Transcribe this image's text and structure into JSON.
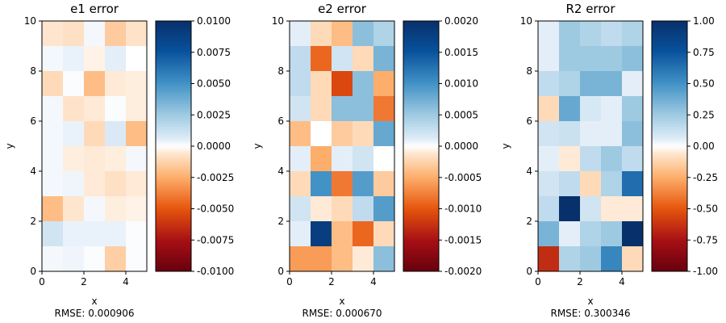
{
  "chart_data": [
    {
      "type": "heatmap",
      "title": "e1 error",
      "xlabel": "x",
      "ylabel": "y",
      "rmse_text": "RMSE: 0.000906",
      "xlim": [
        0,
        5
      ],
      "ylim": [
        0,
        10
      ],
      "xticks": [
        "0",
        "2",
        "4"
      ],
      "yticks": [
        "0",
        "2",
        "4",
        "6",
        "8",
        "10"
      ],
      "colorbar": {
        "min": -0.01,
        "max": 0.01,
        "ticks": [
          "-0.0100",
          "-0.0075",
          "-0.0050",
          "-0.0025",
          "0.0000",
          "0.0025",
          "0.0050",
          "0.0075",
          "0.0100"
        ]
      },
      "values": [
        [
          -0.0006,
          -0.0008,
          0.0002,
          -0.0015,
          -0.0007
        ],
        [
          0.0002,
          0.0004,
          -0.0003,
          0.0005,
          0.0
        ],
        [
          -0.001,
          0.0001,
          -0.002,
          -0.0005,
          -0.0004
        ],
        [
          0.0002,
          -0.0007,
          -0.0005,
          0.0001,
          -0.0004
        ],
        [
          0.0002,
          0.0004,
          -0.001,
          0.0007,
          -0.002
        ],
        [
          0.0002,
          -0.0004,
          -0.0005,
          -0.0004,
          0.0002
        ],
        [
          0.0002,
          0.0003,
          -0.0005,
          -0.0008,
          -0.0005
        ],
        [
          -0.002,
          -0.0006,
          0.0002,
          -0.0004,
          -0.0003
        ],
        [
          0.001,
          0.0004,
          0.0004,
          0.0004,
          0.0001
        ],
        [
          0.0002,
          0.0003,
          0.0001,
          -0.0014,
          0.0001
        ]
      ]
    },
    {
      "type": "heatmap",
      "title": "e2 error",
      "xlabel": "x",
      "ylabel": "y",
      "rmse_text": "RMSE: 0.000670",
      "xlim": [
        0,
        5
      ],
      "ylim": [
        0,
        10
      ],
      "xticks": [
        "0",
        "2",
        "4"
      ],
      "yticks": [
        "0",
        "2",
        "4",
        "6",
        "8",
        "10"
      ],
      "colorbar": {
        "min": -0.002,
        "max": 0.002,
        "ticks": [
          "-0.0020",
          "-0.0015",
          "-0.0010",
          "-0.0005",
          "0.0000",
          "0.0005",
          "0.0010",
          "0.0015",
          "0.0020"
        ]
      },
      "values": [
        [
          0.0001,
          -0.0002,
          -0.0004,
          0.0006,
          0.0004
        ],
        [
          0.0003,
          -0.0009,
          0.0002,
          -0.0002,
          0.0007
        ],
        [
          0.0003,
          -0.0002,
          -0.0011,
          0.0006,
          -0.0005
        ],
        [
          0.0002,
          -0.0002,
          0.0006,
          0.0006,
          -0.0008
        ],
        [
          -0.0004,
          0.0,
          -0.0003,
          -0.0002,
          0.0008
        ],
        [
          0.0001,
          -0.0005,
          0.0001,
          0.0002,
          0.0
        ],
        [
          -0.0002,
          0.001,
          -0.0008,
          0.0009,
          -0.0003
        ],
        [
          0.0002,
          -0.0001,
          -0.0002,
          0.0003,
          0.0009
        ],
        [
          0.0001,
          0.0018,
          -0.0004,
          -0.0009,
          -0.0002
        ],
        [
          -0.0006,
          -0.0006,
          -0.0004,
          -0.0001,
          0.0006
        ]
      ]
    },
    {
      "type": "heatmap",
      "title": "R2 error",
      "xlabel": "x",
      "ylabel": "y",
      "rmse_text": "RMSE: 0.300346",
      "xlim": [
        0,
        5
      ],
      "ylim": [
        0,
        10
      ],
      "xticks": [
        "0",
        "2",
        "4"
      ],
      "yticks": [
        "0",
        "2",
        "4",
        "6",
        "8",
        "10"
      ],
      "colorbar": {
        "min": -1.0,
        "max": 1.0,
        "ticks": [
          "-1.00",
          "-0.75",
          "-0.50",
          "-0.25",
          "0.00",
          "0.25",
          "0.50",
          "0.75",
          "1.00"
        ]
      },
      "values": [
        [
          0.05,
          0.25,
          0.2,
          0.15,
          0.2
        ],
        [
          0.05,
          0.25,
          0.25,
          0.25,
          0.3
        ],
        [
          0.15,
          0.2,
          0.35,
          0.35,
          0.05
        ],
        [
          -0.1,
          0.4,
          0.08,
          0.05,
          0.25
        ],
        [
          0.1,
          0.12,
          0.05,
          0.05,
          0.3
        ],
        [
          0.05,
          -0.05,
          0.15,
          0.25,
          0.15
        ],
        [
          0.1,
          0.15,
          -0.1,
          0.2,
          0.65
        ],
        [
          0.15,
          1.0,
          0.1,
          -0.05,
          -0.05
        ],
        [
          0.35,
          0.05,
          0.2,
          0.25,
          1.0
        ],
        [
          -0.65,
          0.2,
          0.25,
          0.55,
          -0.1
        ]
      ]
    }
  ]
}
